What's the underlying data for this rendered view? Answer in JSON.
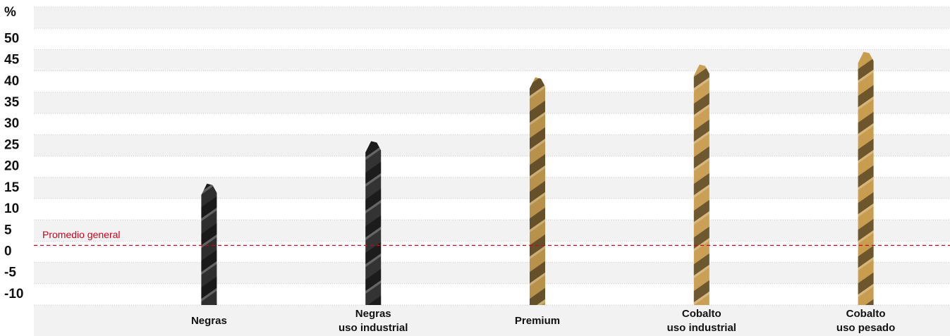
{
  "chart_data": {
    "type": "bar",
    "y_label": "%",
    "categories": [
      [
        "Negras"
      ],
      [
        "Negras",
        "uso industrial"
      ],
      [
        "Premium"
      ],
      [
        "Cobalto",
        "uso industrial"
      ],
      [
        "Cobalto",
        "uso pesado"
      ]
    ],
    "values": [
      16,
      26,
      41,
      44,
      47
    ],
    "colors": [
      "#2e2e2e",
      "#333333",
      "#b8914a",
      "#c9a055",
      "#c99d50"
    ],
    "ylim": [
      -12.5,
      57.5
    ],
    "yticks": [
      -10,
      -5,
      0,
      5,
      10,
      15,
      20,
      25,
      30,
      35,
      40,
      45,
      50
    ],
    "reference": {
      "label": "Promedio general",
      "value": 1.5,
      "color": "#d0021b"
    }
  }
}
